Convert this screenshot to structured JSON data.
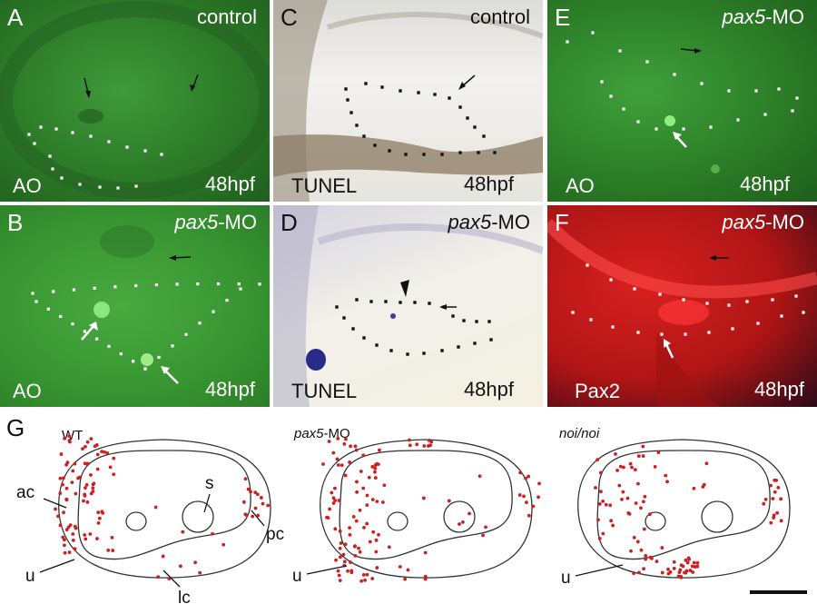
{
  "panels": {
    "A": {
      "letter": "A",
      "condition": "control",
      "stain": "AO",
      "stage": "48hpf",
      "bg": "#2f7f2c"
    },
    "B": {
      "letter": "B",
      "condition": "pax5-MO",
      "condition_italic": "pax5",
      "condition_suffix": "-MO",
      "stain": "AO",
      "stage": "48hpf",
      "bg": "#3a9a33"
    },
    "C": {
      "letter": "C",
      "condition": "control",
      "stain": "TUNEL",
      "stage": "48hpf",
      "bg": "#e8e6e2"
    },
    "D": {
      "letter": "D",
      "condition": "pax5-MO",
      "condition_italic": "pax5",
      "condition_suffix": "-MO",
      "stain": "TUNEL",
      "stage": "48hpf",
      "bg": "#ecebf0"
    },
    "E": {
      "letter": "E",
      "condition": "pax5-MO",
      "condition_italic": "pax5",
      "condition_suffix": "-MO",
      "stain": "AO",
      "stage": "48hpf",
      "bg": "#2e7e2a"
    },
    "F": {
      "letter": "F",
      "condition": "pax5-MO",
      "condition_italic": "pax5",
      "condition_suffix": "-MO",
      "stain": "Pax2",
      "stage": "48hpf",
      "bg": "#c01818"
    }
  },
  "panel_g": {
    "letter": "G",
    "diagrams": [
      {
        "title": "WT",
        "italic": false
      },
      {
        "title_italic": "pax5",
        "title_suffix": "-MO",
        "italic": true
      },
      {
        "title": "noi/noi",
        "italic": true
      }
    ],
    "labels": {
      "ac": "ac",
      "s": "s",
      "pc": "pc",
      "u": "u",
      "lc": "lc"
    },
    "dot_color": "#cc2020",
    "outline_color": "#333333"
  }
}
